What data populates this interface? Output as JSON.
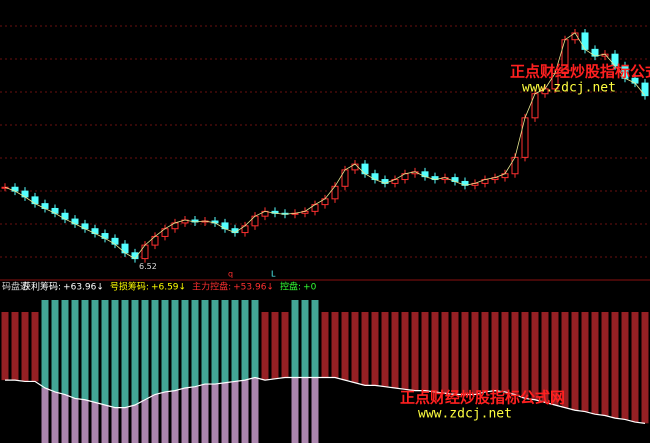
{
  "chart_data": {
    "type": "candlestick",
    "closes": [
      7.31,
      7.27,
      7.21,
      7.14,
      7.09,
      7.04,
      6.98,
      6.93,
      6.88,
      6.83,
      6.78,
      6.72,
      6.63,
      6.57,
      6.71,
      6.8,
      6.88,
      6.94,
      6.97,
      6.95,
      6.96,
      6.94,
      6.88,
      6.84,
      6.91,
      7.01,
      7.06,
      7.04,
      7.03,
      7.04,
      7.06,
      7.13,
      7.19,
      7.32,
      7.49,
      7.55,
      7.45,
      7.39,
      7.35,
      7.39,
      7.45,
      7.47,
      7.42,
      7.39,
      7.41,
      7.37,
      7.33,
      7.35,
      7.39,
      7.41,
      7.45,
      7.62,
      8.03,
      8.28,
      8.33,
      8.49,
      8.84,
      8.91,
      8.74,
      8.67,
      8.69,
      8.57,
      8.44,
      8.39,
      8.26
    ],
    "ylim": [
      6.4,
      9.2
    ],
    "up_color": "#ff3030",
    "down_color": "#54ffff",
    "low_label": 6.52,
    "markers": [
      "q",
      "L"
    ],
    "indicator": {
      "title": "码盘达",
      "legend": [
        {
          "name": "获利筹码:",
          "value": 63.96,
          "label": "+63.96↓",
          "color": "#ffffff"
        },
        {
          "name": "号损筹码:",
          "value": 6.59,
          "label": "+6.59↓",
          "color": "#ffff00"
        },
        {
          "name": "主力控盘:",
          "value": 53.96,
          "label": "+53.96↓",
          "color": "#ff3030"
        },
        {
          "name": "控盘:",
          "value": 0,
          "label": "+0",
          "color": "#33ff33"
        }
      ],
      "ylim": [
        0,
        100
      ],
      "values": [
        48,
        48,
        47,
        47,
        42,
        39,
        37,
        34,
        33,
        31,
        29,
        27,
        27,
        29,
        33,
        37,
        39,
        40,
        42,
        43,
        45,
        45,
        46,
        47,
        48,
        50,
        48,
        49,
        50,
        50,
        50,
        50,
        50,
        50,
        48,
        46,
        44,
        44,
        43,
        42,
        41,
        40,
        40,
        39,
        38,
        37,
        37,
        37,
        39,
        40,
        39,
        37,
        34,
        33,
        31,
        29,
        27,
        25,
        24,
        22,
        21,
        19,
        18,
        16,
        15
      ],
      "colors": [
        "#b0262a",
        "#b0262a",
        "#b0262a",
        "#b0262a",
        "#4fc2b0",
        "#4fc2b0",
        "#4fc2b0",
        "#4fc2b0",
        "#4fc2b0",
        "#4fc2b0",
        "#4fc2b0",
        "#4fc2b0",
        "#4fc2b0",
        "#4fc2b0",
        "#4fc2b0",
        "#4fc2b0",
        "#4fc2b0",
        "#4fc2b0",
        "#4fc2b0",
        "#4fc2b0",
        "#4fc2b0",
        "#4fc2b0",
        "#4fc2b0",
        "#4fc2b0",
        "#4fc2b0",
        "#4fc2b0",
        "#b0262a",
        "#b0262a",
        "#b0262a",
        "#4fc2b0",
        "#4fc2b0",
        "#4fc2b0",
        "#b0262a",
        "#b0262a",
        "#b0262a",
        "#b0262a",
        "#b0262a",
        "#b0262a",
        "#b0262a",
        "#b0262a",
        "#b0262a",
        "#b0262a",
        "#b0262a",
        "#b0262a",
        "#b0262a",
        "#b0262a",
        "#b0262a",
        "#b0262a",
        "#b0262a",
        "#b0262a",
        "#b0262a",
        "#b0262a",
        "#b0262a",
        "#b0262a",
        "#b0262a",
        "#b0262a",
        "#b0262a",
        "#b0262a",
        "#b0262a",
        "#b0262a",
        "#b0262a",
        "#b0262a",
        "#b0262a",
        "#b0262a",
        "#b0262a"
      ],
      "below_color": "#d6a6d8"
    },
    "watermarks": [
      {
        "title": "正点财经炒股指标公式网",
        "url": "www.zdcj.net"
      },
      {
        "title": "正点财经炒股指标公式网",
        "url": "www.zdcj.net"
      }
    ]
  }
}
